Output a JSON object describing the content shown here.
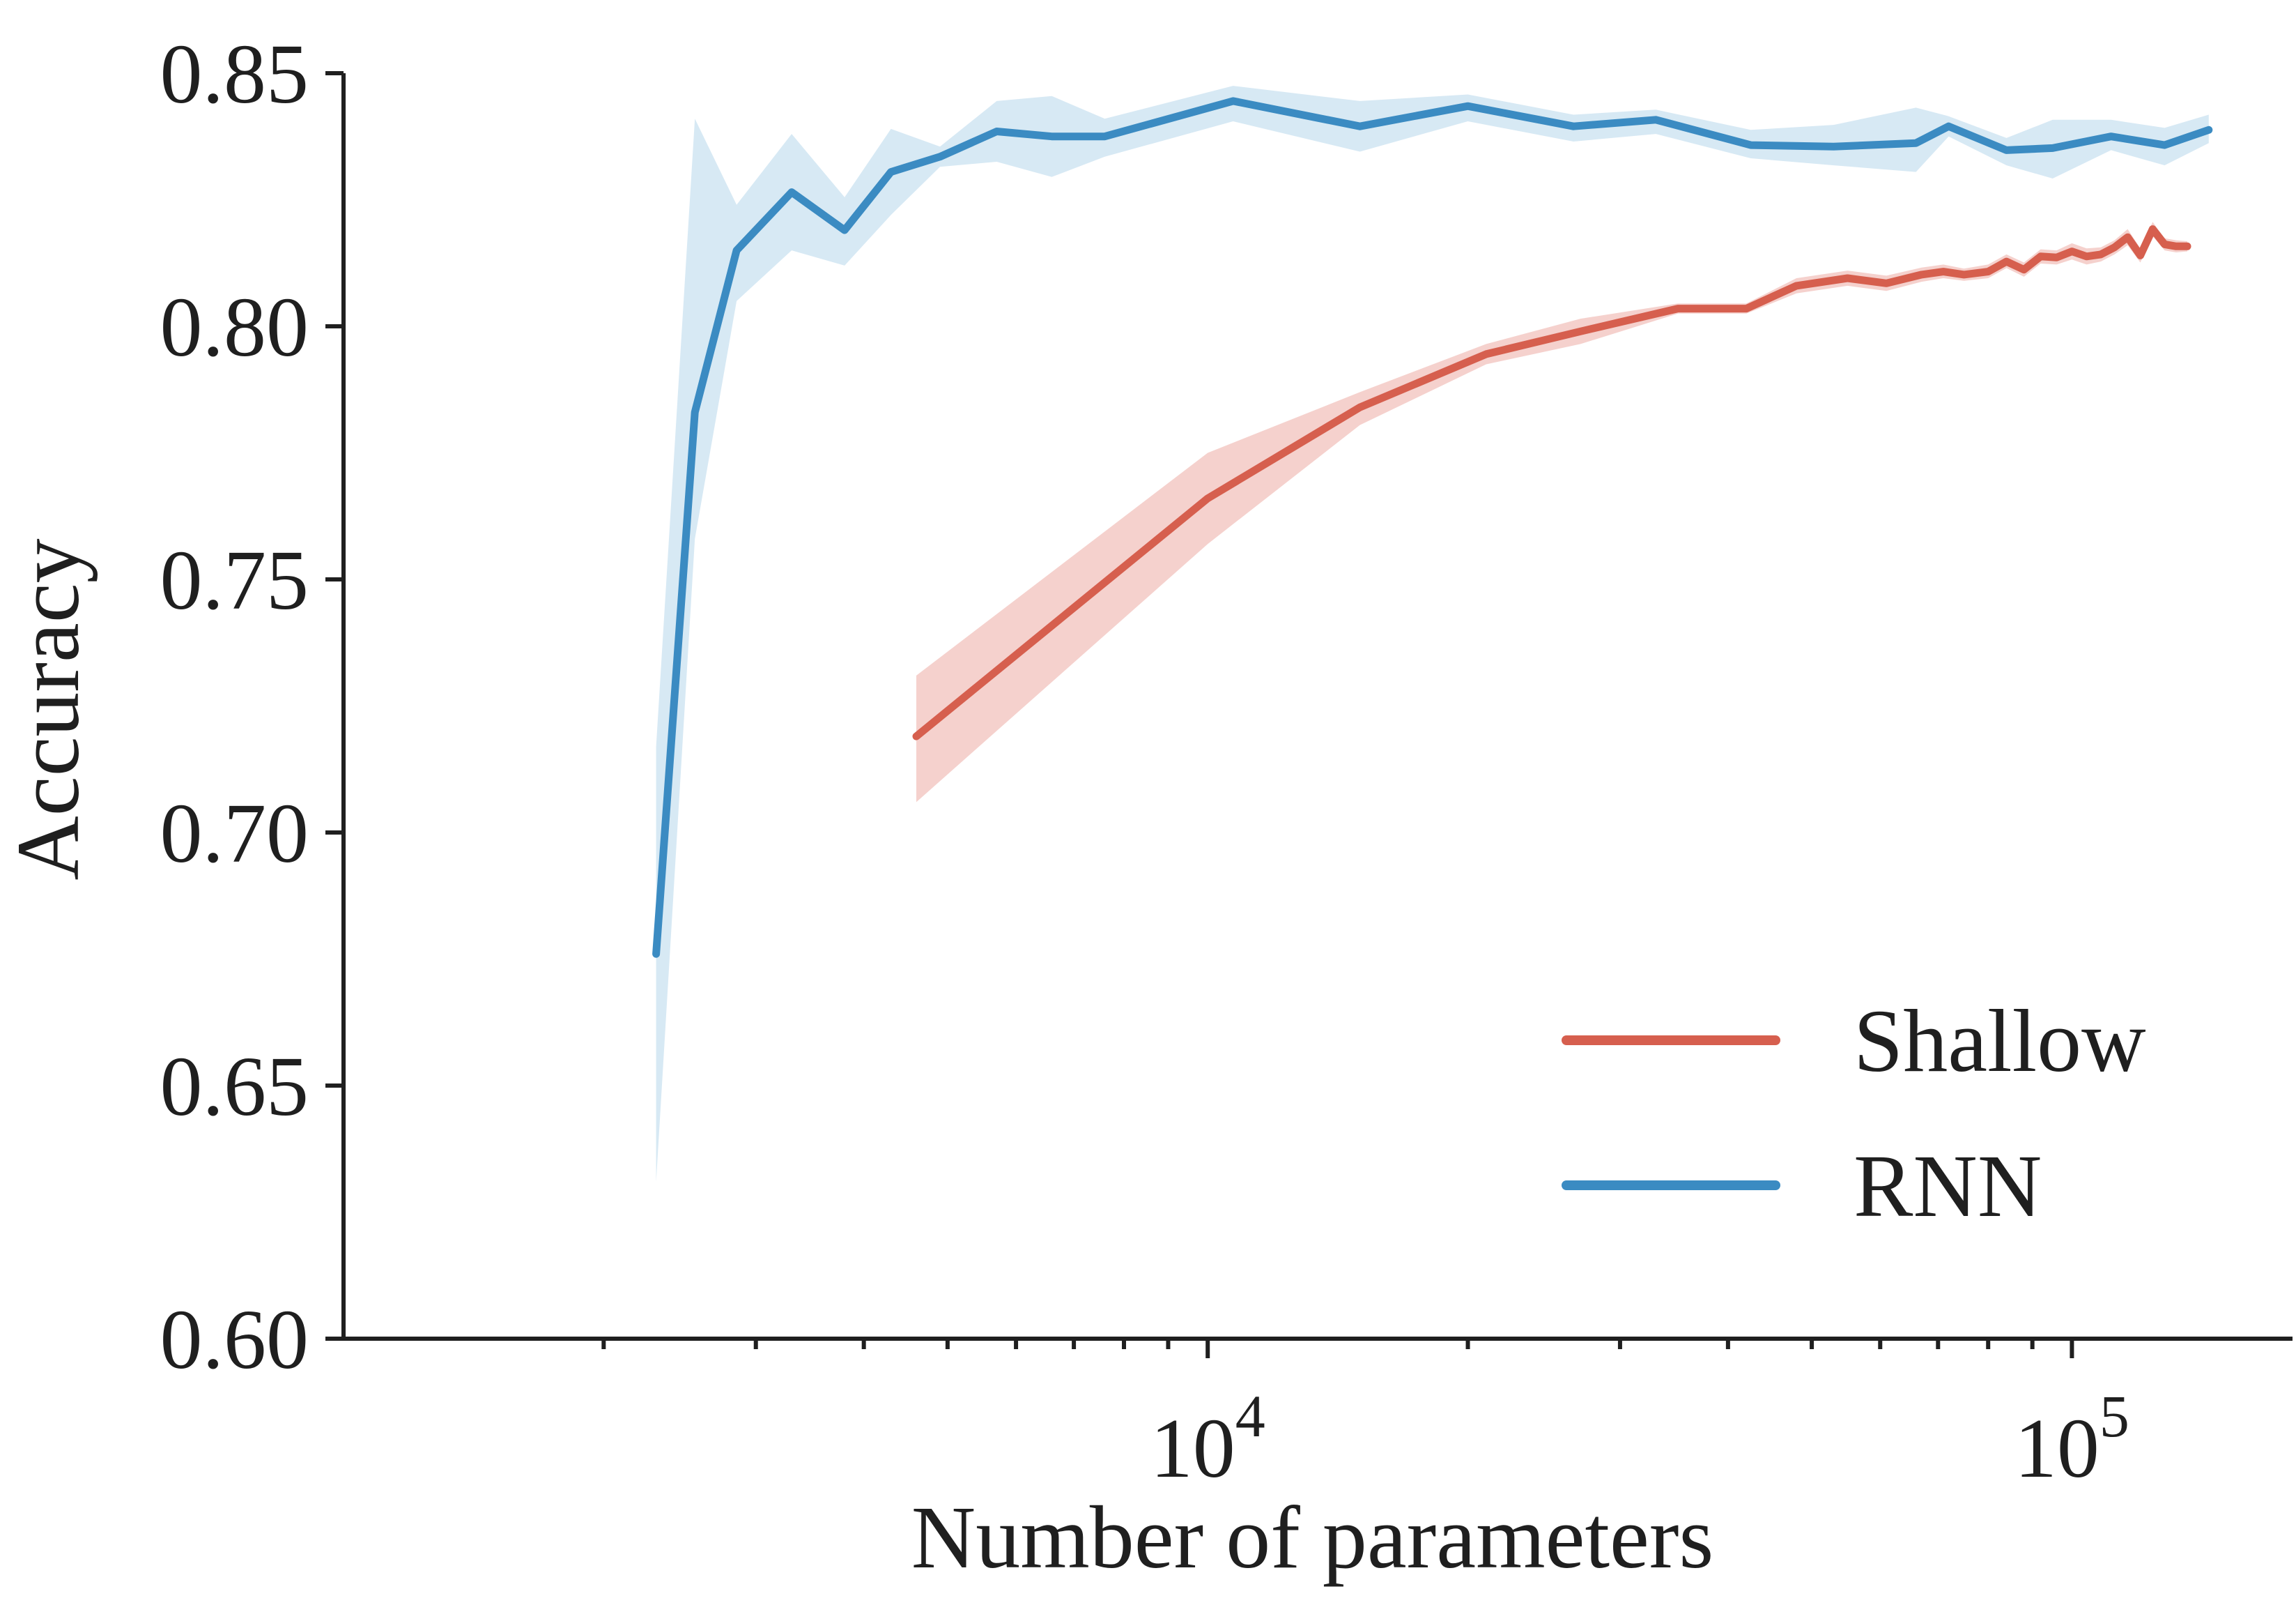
{
  "chart_data": {
    "type": "line",
    "title": "",
    "xlabel": "Number of parameters",
    "ylabel": "Accuracy",
    "xscale": "log",
    "xlim": [
      1000,
      180000
    ],
    "ylim": [
      0.6,
      0.85
    ],
    "grid": false,
    "legend_position": "lower-right",
    "x_ticks": [
      {
        "value": 10000,
        "base": "10",
        "exp": "4"
      },
      {
        "value": 100000,
        "base": "10",
        "exp": "5"
      }
    ],
    "x_minor_ticks": [
      2000,
      3000,
      4000,
      5000,
      6000,
      7000,
      8000,
      9000,
      20000,
      30000,
      40000,
      50000,
      60000,
      70000,
      80000,
      90000,
      200000
    ],
    "y_ticks": [
      {
        "value": 0.6,
        "label": "0.60"
      },
      {
        "value": 0.65,
        "label": "0.65"
      },
      {
        "value": 0.7,
        "label": "0.70"
      },
      {
        "value": 0.75,
        "label": "0.75"
      },
      {
        "value": 0.8,
        "label": "0.80"
      },
      {
        "value": 0.85,
        "label": "0.85"
      }
    ],
    "series": [
      {
        "name": "Shallow",
        "color": "#d65f4e",
        "band_color": "#f2c6c1",
        "x": [
          4600,
          10000,
          15000,
          21000,
          27000,
          35000,
          42000,
          48000,
          55000,
          61000,
          67000,
          71000,
          75000,
          80000,
          84000,
          88000,
          92000,
          96000,
          100000,
          104000,
          108000,
          112000,
          116000,
          120000,
          124000,
          128000,
          132000,
          136000
        ],
        "y": [
          0.719,
          0.766,
          0.784,
          0.7945,
          0.799,
          0.8035,
          0.8035,
          0.808,
          0.8095,
          0.8085,
          0.8102,
          0.8108,
          0.8102,
          0.8108,
          0.8128,
          0.8112,
          0.8138,
          0.8136,
          0.8148,
          0.8138,
          0.8142,
          0.8156,
          0.8176,
          0.814,
          0.8192,
          0.8162,
          0.8158,
          0.8158
        ],
        "lower": [
          0.706,
          0.757,
          0.7805,
          0.7925,
          0.7965,
          0.8025,
          0.8025,
          0.8065,
          0.808,
          0.807,
          0.8088,
          0.8095,
          0.809,
          0.8095,
          0.8115,
          0.8098,
          0.8124,
          0.8122,
          0.8132,
          0.8122,
          0.8128,
          0.8142,
          0.816,
          0.8126,
          0.8178,
          0.815,
          0.8146,
          0.8148
        ],
        "upper": [
          0.731,
          0.775,
          0.787,
          0.7965,
          0.8015,
          0.8045,
          0.8045,
          0.8095,
          0.811,
          0.81,
          0.8116,
          0.8122,
          0.8114,
          0.8122,
          0.8142,
          0.8126,
          0.8152,
          0.815,
          0.8164,
          0.8154,
          0.8156,
          0.817,
          0.8192,
          0.8154,
          0.8206,
          0.8174,
          0.817,
          0.8168
        ]
      },
      {
        "name": "RNN",
        "color": "#3b8bc2",
        "band_color": "#cde3f1",
        "x": [
          2300,
          2550,
          2850,
          3300,
          3800,
          4300,
          4900,
          5700,
          6600,
          7600,
          10700,
          15000,
          20000,
          26500,
          33000,
          42500,
          53000,
          66000,
          72000,
          84000,
          95000,
          111000,
          128000,
          144000
        ],
        "y": [
          0.676,
          0.783,
          0.815,
          0.8265,
          0.819,
          0.8305,
          0.8335,
          0.8385,
          0.8375,
          0.8375,
          0.8445,
          0.8395,
          0.8435,
          0.8395,
          0.8408,
          0.8358,
          0.8355,
          0.8362,
          0.8395,
          0.8348,
          0.8352,
          0.8375,
          0.8358,
          0.8388
        ],
        "lower": [
          0.631,
          0.758,
          0.805,
          0.815,
          0.812,
          0.822,
          0.8315,
          0.8325,
          0.8295,
          0.8335,
          0.8405,
          0.8345,
          0.8405,
          0.8365,
          0.838,
          0.8332,
          0.8318,
          0.8305,
          0.8375,
          0.8318,
          0.8292,
          0.8348,
          0.8318,
          0.8362
        ],
        "upper": [
          0.717,
          0.841,
          0.824,
          0.838,
          0.8255,
          0.839,
          0.8355,
          0.8445,
          0.8455,
          0.841,
          0.8475,
          0.8445,
          0.8458,
          0.8418,
          0.8428,
          0.8388,
          0.8398,
          0.8432,
          0.8415,
          0.8372,
          0.8408,
          0.8408,
          0.8392,
          0.8418
        ]
      }
    ]
  }
}
